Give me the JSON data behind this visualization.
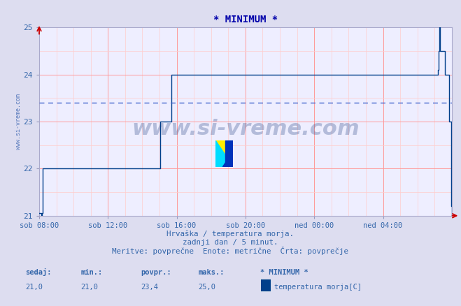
{
  "title": "* MINIMUM *",
  "line_color": "#003f8a",
  "avg_line_color": "#4466cc",
  "avg_value": 23.4,
  "ylim": [
    21,
    25
  ],
  "yticks": [
    21,
    22,
    23,
    24,
    25
  ],
  "xlabel_line1": "Hrvaška / temperatura morja.",
  "xlabel_line2": "zadnji dan / 5 minut.",
  "xlabel_line3": "Meritve: povprečne  Enote: metrične  Črta: povprečje",
  "footer_labels": [
    "sedaj:",
    "min.:",
    "povpr.:",
    "maks.:",
    "* MINIMUM *"
  ],
  "footer_values": [
    "21,0",
    "21,0",
    "23,4",
    "25,0"
  ],
  "legend_label": "temperatura morja[C]",
  "legend_color": "#003f8a",
  "xticklabels": [
    "sob 08:00",
    "sob 12:00",
    "sob 16:00",
    "sob 20:00",
    "ned 00:00",
    "ned 04:00"
  ],
  "xtick_positions": [
    0,
    240,
    480,
    720,
    960,
    1200
  ],
  "total_points": 1440,
  "background_color": "#eeeeff",
  "grid_major_color": "#ff9999",
  "grid_minor_color": "#ffcccc",
  "watermark": "www.si-vreme.com",
  "watermark_color": "#1a3a7a",
  "title_color": "#0000aa",
  "axis_label_color": "#3366aa",
  "ylabel_text": "www.si-vreme.com",
  "ylabel_color": "#5577bb",
  "fig_bg_color": "#ddddf0",
  "x_data": [
    0,
    8,
    10,
    12,
    420,
    422,
    460,
    462,
    1390,
    1392,
    1394,
    1396,
    1398,
    1400,
    1415,
    1430,
    1438,
    1440
  ],
  "y_data": [
    21.05,
    21.0,
    21.05,
    22.0,
    22.0,
    23.0,
    23.0,
    24.0,
    24.0,
    24.1,
    24.5,
    25.0,
    25.0,
    24.5,
    24.0,
    23.0,
    21.2,
    21.0
  ]
}
